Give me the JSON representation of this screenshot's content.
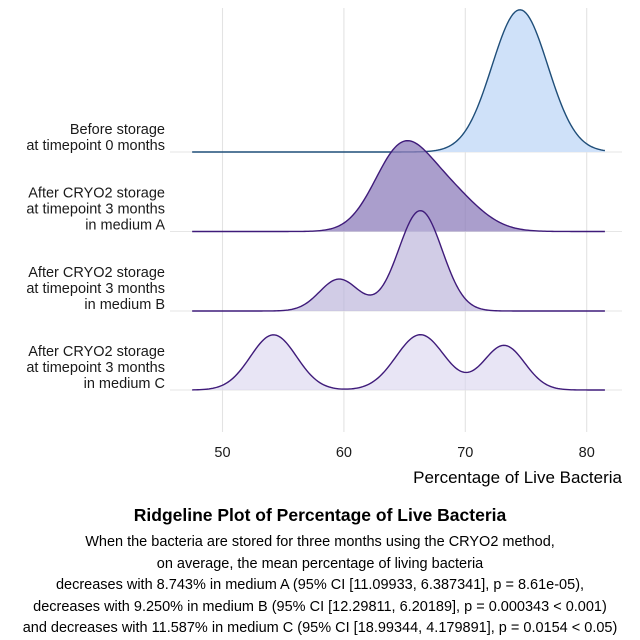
{
  "chart_data": {
    "type": "ridgeline",
    "title": "Ridgeline Plot of Percentage of Live Bacteria",
    "subtitle_lines": [
      "When the bacteria are stored for three months using the CRYO2 method,",
      "on average, the mean percentage of living bacteria",
      "decreases with 8.743% in medium A (95% CI [11.09933, 6.387341], p = 8.61e-05),",
      "decreases with 9.250% in medium B (95% CI [12.29811, 6.20189], p = 0.000343 < 0.001)",
      "and decreases with 11.587% in medium C (95% CI [18.99344, 4.179891], p = 0.0154 < 0.05)"
    ],
    "xlabel": "Percentage of Live Bacteria",
    "ylabel": "",
    "xlim": [
      46.5,
      83
    ],
    "x_ticks": [
      50,
      60,
      70,
      80
    ],
    "x_tick_labels": [
      "50",
      "60",
      "70",
      "80"
    ],
    "density_range": [
      47.5,
      81.5
    ],
    "grid": "vertical major gridlines",
    "legend": "none",
    "series": [
      {
        "name": "Before storage\nat timepoint 0 months",
        "label_lines": [
          "Before storage",
          "at timepoint 0 months"
        ],
        "fill": "#cfe1f9",
        "stroke": "#1f4e79",
        "fill_opacity": 1,
        "components": [
          {
            "mean": 74.5,
            "sd": 2.3,
            "weight": 1.0
          }
        ],
        "peak_height_rows": 1.8
      },
      {
        "name": "After CRYO2 storage\nat timepoint 3 months\nin medium A",
        "label_lines": [
          "After CRYO2 storage",
          "at timepoint 3 months",
          "in medium A"
        ],
        "fill": "#8e7dbb",
        "stroke": "#3f1b7a",
        "fill_opacity": 0.75,
        "components": [
          {
            "mean": 64.6,
            "sd": 2.2,
            "weight": 0.6
          },
          {
            "mean": 68.3,
            "sd": 2.6,
            "weight": 0.4
          }
        ],
        "peak_height_rows": 1.15
      },
      {
        "name": "After CRYO2 storage\nat timepoint 3 months\nin medium B",
        "label_lines": [
          "After CRYO2 storage",
          "at timepoint 3 months",
          "in medium B"
        ],
        "fill": "#b9b0d9",
        "stroke": "#3f1b7a",
        "fill_opacity": 0.65,
        "components": [
          {
            "mean": 59.6,
            "sd": 1.6,
            "weight": 0.22
          },
          {
            "mean": 66.3,
            "sd": 1.8,
            "weight": 0.78
          }
        ],
        "peak_height_rows": 1.27
      },
      {
        "name": "After CRYO2 storage\nat timepoint 3 months\nin medium C",
        "label_lines": [
          "After CRYO2 storage",
          "at timepoint 3 months",
          "in medium C"
        ],
        "fill": "#d9d3ee",
        "stroke": "#3f1b7a",
        "fill_opacity": 0.6,
        "components": [
          {
            "mean": 54.2,
            "sd": 1.9,
            "weight": 0.36
          },
          {
            "mean": 66.3,
            "sd": 2.0,
            "weight": 0.38
          },
          {
            "mean": 73.2,
            "sd": 1.7,
            "weight": 0.26
          }
        ],
        "peak_height_rows": 0.7
      }
    ]
  }
}
